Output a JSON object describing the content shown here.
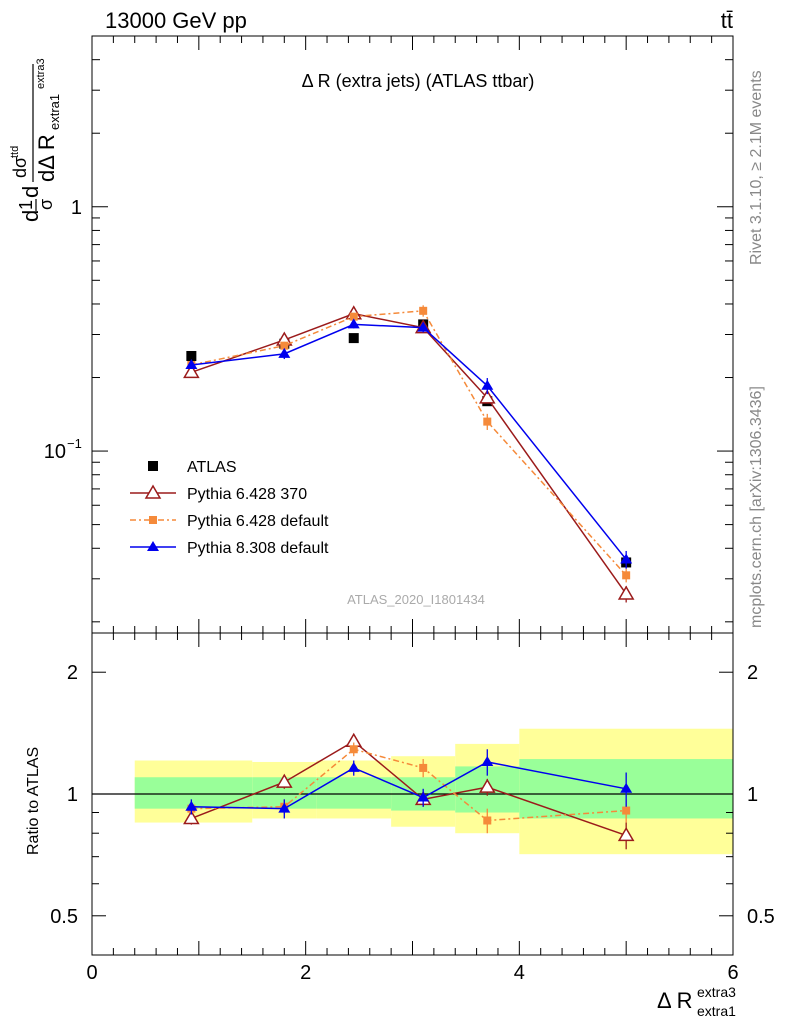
{
  "header": {
    "left": "13000 GeV pp",
    "right": "tt̄"
  },
  "side": {
    "rivet": "Rivet 3.1.10, ≥ 2.1M events",
    "mcplots": "mcplots.cern.ch [arXiv:1306.3436]"
  },
  "main_title": "Δ R (extra jets) (ATLAS ttbar)",
  "analysis_id": "ATLAS_2020_I1801434",
  "ratio_ylabel": "Ratio to ATLAS",
  "colors": {
    "atlas": "#000000",
    "py6_370": "#9b1b1b",
    "py6_def": "#f58a3a",
    "py8_def": "#0000ee",
    "band_inner": "#99ff99",
    "band_outer": "#ffff99"
  },
  "chart_data": [
    {
      "type": "scatter",
      "panel": "main",
      "title": "Δ R (extra jets) (ATLAS ttbar)",
      "ylabel": "dσ^ttd / σ dΔ R_extra1^extra3",
      "yscale": "log",
      "ylim": [
        0.018,
        5.0
      ],
      "xlim": [
        0,
        6
      ],
      "yticks": [
        {
          "v": 1,
          "label": "1"
        },
        {
          "v": 0.1,
          "label": "10^-1"
        }
      ],
      "legend_position": "middle-left",
      "series": [
        {
          "name": "ATLAS",
          "key": "atlas",
          "marker": "square",
          "x": [
            0.93,
            1.8,
            2.45,
            3.1,
            3.7,
            5.0
          ],
          "y": [
            0.245,
            0.275,
            0.29,
            0.33,
            0.16,
            0.035
          ]
        },
        {
          "name": "Pythia 6.428 370",
          "key": "py6_370",
          "marker": "open-triangle",
          "line": "solid",
          "x": [
            0.93,
            1.8,
            2.45,
            3.1,
            3.7,
            5.0
          ],
          "y": [
            0.21,
            0.285,
            0.365,
            0.32,
            0.165,
            0.026
          ],
          "err": [
            0.006,
            0.01,
            0.012,
            0.012,
            0.008,
            0.002
          ]
        },
        {
          "name": "Pythia 6.428 default",
          "key": "py6_def",
          "marker": "square-small",
          "line": "dashdot",
          "x": [
            0.93,
            1.8,
            2.45,
            3.1,
            3.7,
            5.0
          ],
          "y": [
            0.225,
            0.27,
            0.355,
            0.375,
            0.132,
            0.031
          ],
          "err": [
            0.007,
            0.01,
            0.012,
            0.02,
            0.01,
            0.002
          ]
        },
        {
          "name": "Pythia 8.308 default",
          "key": "py8_def",
          "marker": "filled-triangle",
          "line": "solid",
          "x": [
            0.93,
            1.8,
            2.45,
            3.1,
            3.7,
            5.0
          ],
          "y": [
            0.225,
            0.25,
            0.33,
            0.32,
            0.185,
            0.036
          ],
          "err": [
            0.008,
            0.012,
            0.012,
            0.014,
            0.014,
            0.003
          ]
        }
      ]
    },
    {
      "type": "scatter",
      "panel": "ratio",
      "ylabel": "Ratio to ATLAS",
      "xlabel": "Δ R_extra1^extra3",
      "ylim": [
        0.4,
        2.5
      ],
      "xlim": [
        0,
        6
      ],
      "xticks": [
        {
          "v": 0,
          "label": "0"
        },
        {
          "v": 2,
          "label": "2"
        },
        {
          "v": 4,
          "label": "4"
        },
        {
          "v": 6,
          "label": "6"
        }
      ],
      "yticks": [
        {
          "v": 0.5,
          "label": "0.5"
        },
        {
          "v": 1,
          "label": "1"
        },
        {
          "v": 2,
          "label": "2"
        }
      ],
      "bands": [
        {
          "x0": 0.4,
          "x1": 1.5,
          "inner": [
            0.92,
            1.1
          ],
          "outer": [
            0.85,
            1.21
          ]
        },
        {
          "x0": 1.5,
          "x1": 2.1,
          "inner": [
            0.92,
            1.1
          ],
          "outer": [
            0.87,
            1.2
          ]
        },
        {
          "x0": 2.1,
          "x1": 2.8,
          "inner": [
            0.92,
            1.1
          ],
          "outer": [
            0.87,
            1.21
          ]
        },
        {
          "x0": 2.8,
          "x1": 3.4,
          "inner": [
            0.91,
            1.1
          ],
          "outer": [
            0.83,
            1.24
          ]
        },
        {
          "x0": 3.4,
          "x1": 4.0,
          "inner": [
            0.9,
            1.17
          ],
          "outer": [
            0.8,
            1.33
          ]
        },
        {
          "x0": 4.0,
          "x1": 6.0,
          "inner": [
            0.87,
            1.22
          ],
          "outer": [
            0.71,
            1.45
          ]
        }
      ],
      "series": [
        {
          "name": "Pythia 6.428 370",
          "key": "py6_370",
          "marker": "open-triangle",
          "line": "solid",
          "x": [
            0.93,
            1.8,
            2.45,
            3.1,
            3.7,
            5.0
          ],
          "y": [
            0.87,
            1.07,
            1.35,
            0.97,
            1.04,
            0.79
          ],
          "err": [
            0.03,
            0.04,
            0.05,
            0.04,
            0.05,
            0.06
          ]
        },
        {
          "name": "Pythia 6.428 default",
          "key": "py6_def",
          "marker": "square-small",
          "line": "dashdot",
          "x": [
            0.93,
            1.8,
            2.45,
            3.1,
            3.7,
            5.0
          ],
          "y": [
            0.92,
            0.93,
            1.29,
            1.16,
            0.86,
            0.91
          ],
          "err": [
            0.03,
            0.04,
            0.05,
            0.06,
            0.06,
            0.06
          ]
        },
        {
          "name": "Pythia 8.308 default",
          "key": "py8_def",
          "marker": "filled-triangle",
          "line": "solid",
          "x": [
            0.93,
            1.8,
            2.45,
            3.1,
            3.7,
            5.0
          ],
          "y": [
            0.93,
            0.92,
            1.16,
            0.98,
            1.2,
            1.03
          ],
          "err": [
            0.04,
            0.05,
            0.05,
            0.05,
            0.09,
            0.1
          ]
        }
      ]
    }
  ]
}
